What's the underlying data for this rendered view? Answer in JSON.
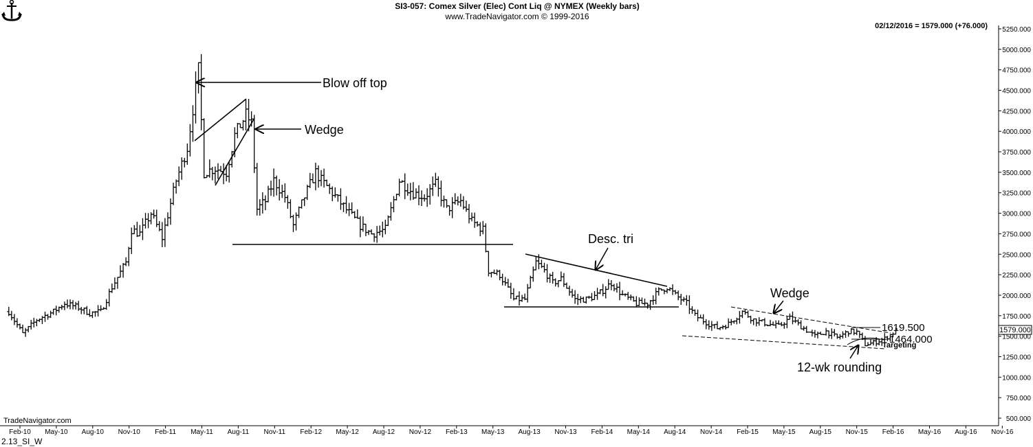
{
  "header": {
    "title": "SI3-057:  Comex Silver (Elec) Cont Liq @ NYMEX  (Weekly bars)",
    "subtitle": "www.TradeNavigator.com © 1999-2016",
    "last_quote": "02/12/2016 = 1579.000 (+76.000)"
  },
  "footer": {
    "watermark": "TradeNavigator.com",
    "chart_id": "2.13_SI_W"
  },
  "annotations": {
    "blow_off_top": "Blow off top",
    "wedge1": "Wedge",
    "desc_tri": "Desc. tri",
    "wedge2": "Wedge",
    "rounding": "12-wk rounding",
    "level_high": "1619.500",
    "level_low": "1464.000",
    "targeting": "Targeting"
  },
  "colors": {
    "bars": "#000000",
    "background": "#ffffff",
    "last_price_box": "#ffffff"
  },
  "chart_data": {
    "type": "ohlc",
    "title": "SI3-057:  Comex Silver (Elec) Cont Liq @ NYMEX  (Weekly bars)",
    "ylim": [
      500,
      5250
    ],
    "y_ticks": [
      "5250.000",
      "5000.000",
      "4750.000",
      "4500.000",
      "4250.000",
      "4000.000",
      "3750.000",
      "3500.000",
      "3250.000",
      "3000.000",
      "2750.000",
      "2500.000",
      "2250.000",
      "2000.000",
      "1750.000",
      "1500.000",
      "1250.000",
      "1000.000",
      "750.000",
      "500.000"
    ],
    "x_ticks": [
      "Feb-10",
      "May-10",
      "Aug-10",
      "Nov-10",
      "Feb-11",
      "May-11",
      "Aug-11",
      "Nov-11",
      "Feb-12",
      "May-12",
      "Aug-12",
      "Nov-12",
      "Feb-13",
      "May-13",
      "Aug-13",
      "Nov-13",
      "Feb-14",
      "May-14",
      "Aug-14",
      "Nov-14",
      "Feb-15",
      "May-15",
      "Aug-15",
      "Nov-15",
      "Feb-16",
      "May-16",
      "Aug-16",
      "Nov-16"
    ],
    "last_price": "1579.000",
    "grid": false,
    "price_path": [
      [
        "2010-01-04",
        1800
      ],
      [
        "2010-02-08",
        1530
      ],
      [
        "2010-03-15",
        1700
      ],
      [
        "2010-04-26",
        1800
      ],
      [
        "2010-05-24",
        1900
      ],
      [
        "2010-06-28",
        1850
      ],
      [
        "2010-07-26",
        1780
      ],
      [
        "2010-08-23",
        1800
      ],
      [
        "2010-09-20",
        2100
      ],
      [
        "2010-10-25",
        2400
      ],
      [
        "2010-11-08",
        2800
      ],
      [
        "2010-11-29",
        2750
      ],
      [
        "2010-12-27",
        3000
      ],
      [
        "2011-01-24",
        2700
      ],
      [
        "2011-02-28",
        3400
      ],
      [
        "2011-03-28",
        3800
      ],
      [
        "2011-04-25",
        4750
      ],
      [
        "2011-05-09",
        3500
      ],
      [
        "2011-06-06",
        3550
      ],
      [
        "2011-07-04",
        3500
      ],
      [
        "2011-07-25",
        3950
      ],
      [
        "2011-08-22",
        4200
      ],
      [
        "2011-09-05",
        4100
      ],
      [
        "2011-09-19",
        3050
      ],
      [
        "2011-10-10",
        3150
      ],
      [
        "2011-10-31",
        3400
      ],
      [
        "2011-11-28",
        3200
      ],
      [
        "2011-12-19",
        2850
      ],
      [
        "2012-01-16",
        3200
      ],
      [
        "2012-02-13",
        3500
      ],
      [
        "2012-02-27",
        3400
      ],
      [
        "2012-03-26",
        3250
      ],
      [
        "2012-05-07",
        3000
      ],
      [
        "2012-06-04",
        2850
      ],
      [
        "2012-07-02",
        2750
      ],
      [
        "2012-08-06",
        2800
      ],
      [
        "2012-09-10",
        3400
      ],
      [
        "2012-10-15",
        3250
      ],
      [
        "2012-11-12",
        3200
      ],
      [
        "2012-12-10",
        3350
      ],
      [
        "2013-01-07",
        3050
      ],
      [
        "2013-02-11",
        3150
      ],
      [
        "2013-03-11",
        2900
      ],
      [
        "2013-04-08",
        2800
      ],
      [
        "2013-04-22",
        2300
      ],
      [
        "2013-05-20",
        2250
      ],
      [
        "2013-06-24",
        1950
      ],
      [
        "2013-07-22",
        1950
      ],
      [
        "2013-08-19",
        2400
      ],
      [
        "2013-09-09",
        2300
      ],
      [
        "2013-09-30",
        2150
      ],
      [
        "2013-10-21",
        2200
      ],
      [
        "2013-11-25",
        1950
      ],
      [
        "2013-12-23",
        1950
      ],
      [
        "2014-01-20",
        2000
      ],
      [
        "2014-02-24",
        2150
      ],
      [
        "2014-03-24",
        2000
      ],
      [
        "2014-04-28",
        1900
      ],
      [
        "2014-05-26",
        1900
      ],
      [
        "2014-06-23",
        2050
      ],
      [
        "2014-07-14",
        2100
      ],
      [
        "2014-08-04",
        2000
      ],
      [
        "2014-09-01",
        1900
      ],
      [
        "2014-09-22",
        1750
      ],
      [
        "2014-10-27",
        1650
      ],
      [
        "2014-11-17",
        1600
      ],
      [
        "2014-12-15",
        1650
      ],
      [
        "2015-01-19",
        1800
      ],
      [
        "2015-02-16",
        1700
      ],
      [
        "2015-03-23",
        1650
      ],
      [
        "2015-04-20",
        1620
      ],
      [
        "2015-05-18",
        1720
      ],
      [
        "2015-06-15",
        1620
      ],
      [
        "2015-07-20",
        1500
      ],
      [
        "2015-08-17",
        1560
      ],
      [
        "2015-09-14",
        1480
      ],
      [
        "2015-10-12",
        1560
      ],
      [
        "2015-11-02",
        1550
      ],
      [
        "2015-11-23",
        1400
      ],
      [
        "2015-12-14",
        1420
      ],
      [
        "2016-01-11",
        1470
      ],
      [
        "2016-02-12",
        1579
      ]
    ]
  }
}
